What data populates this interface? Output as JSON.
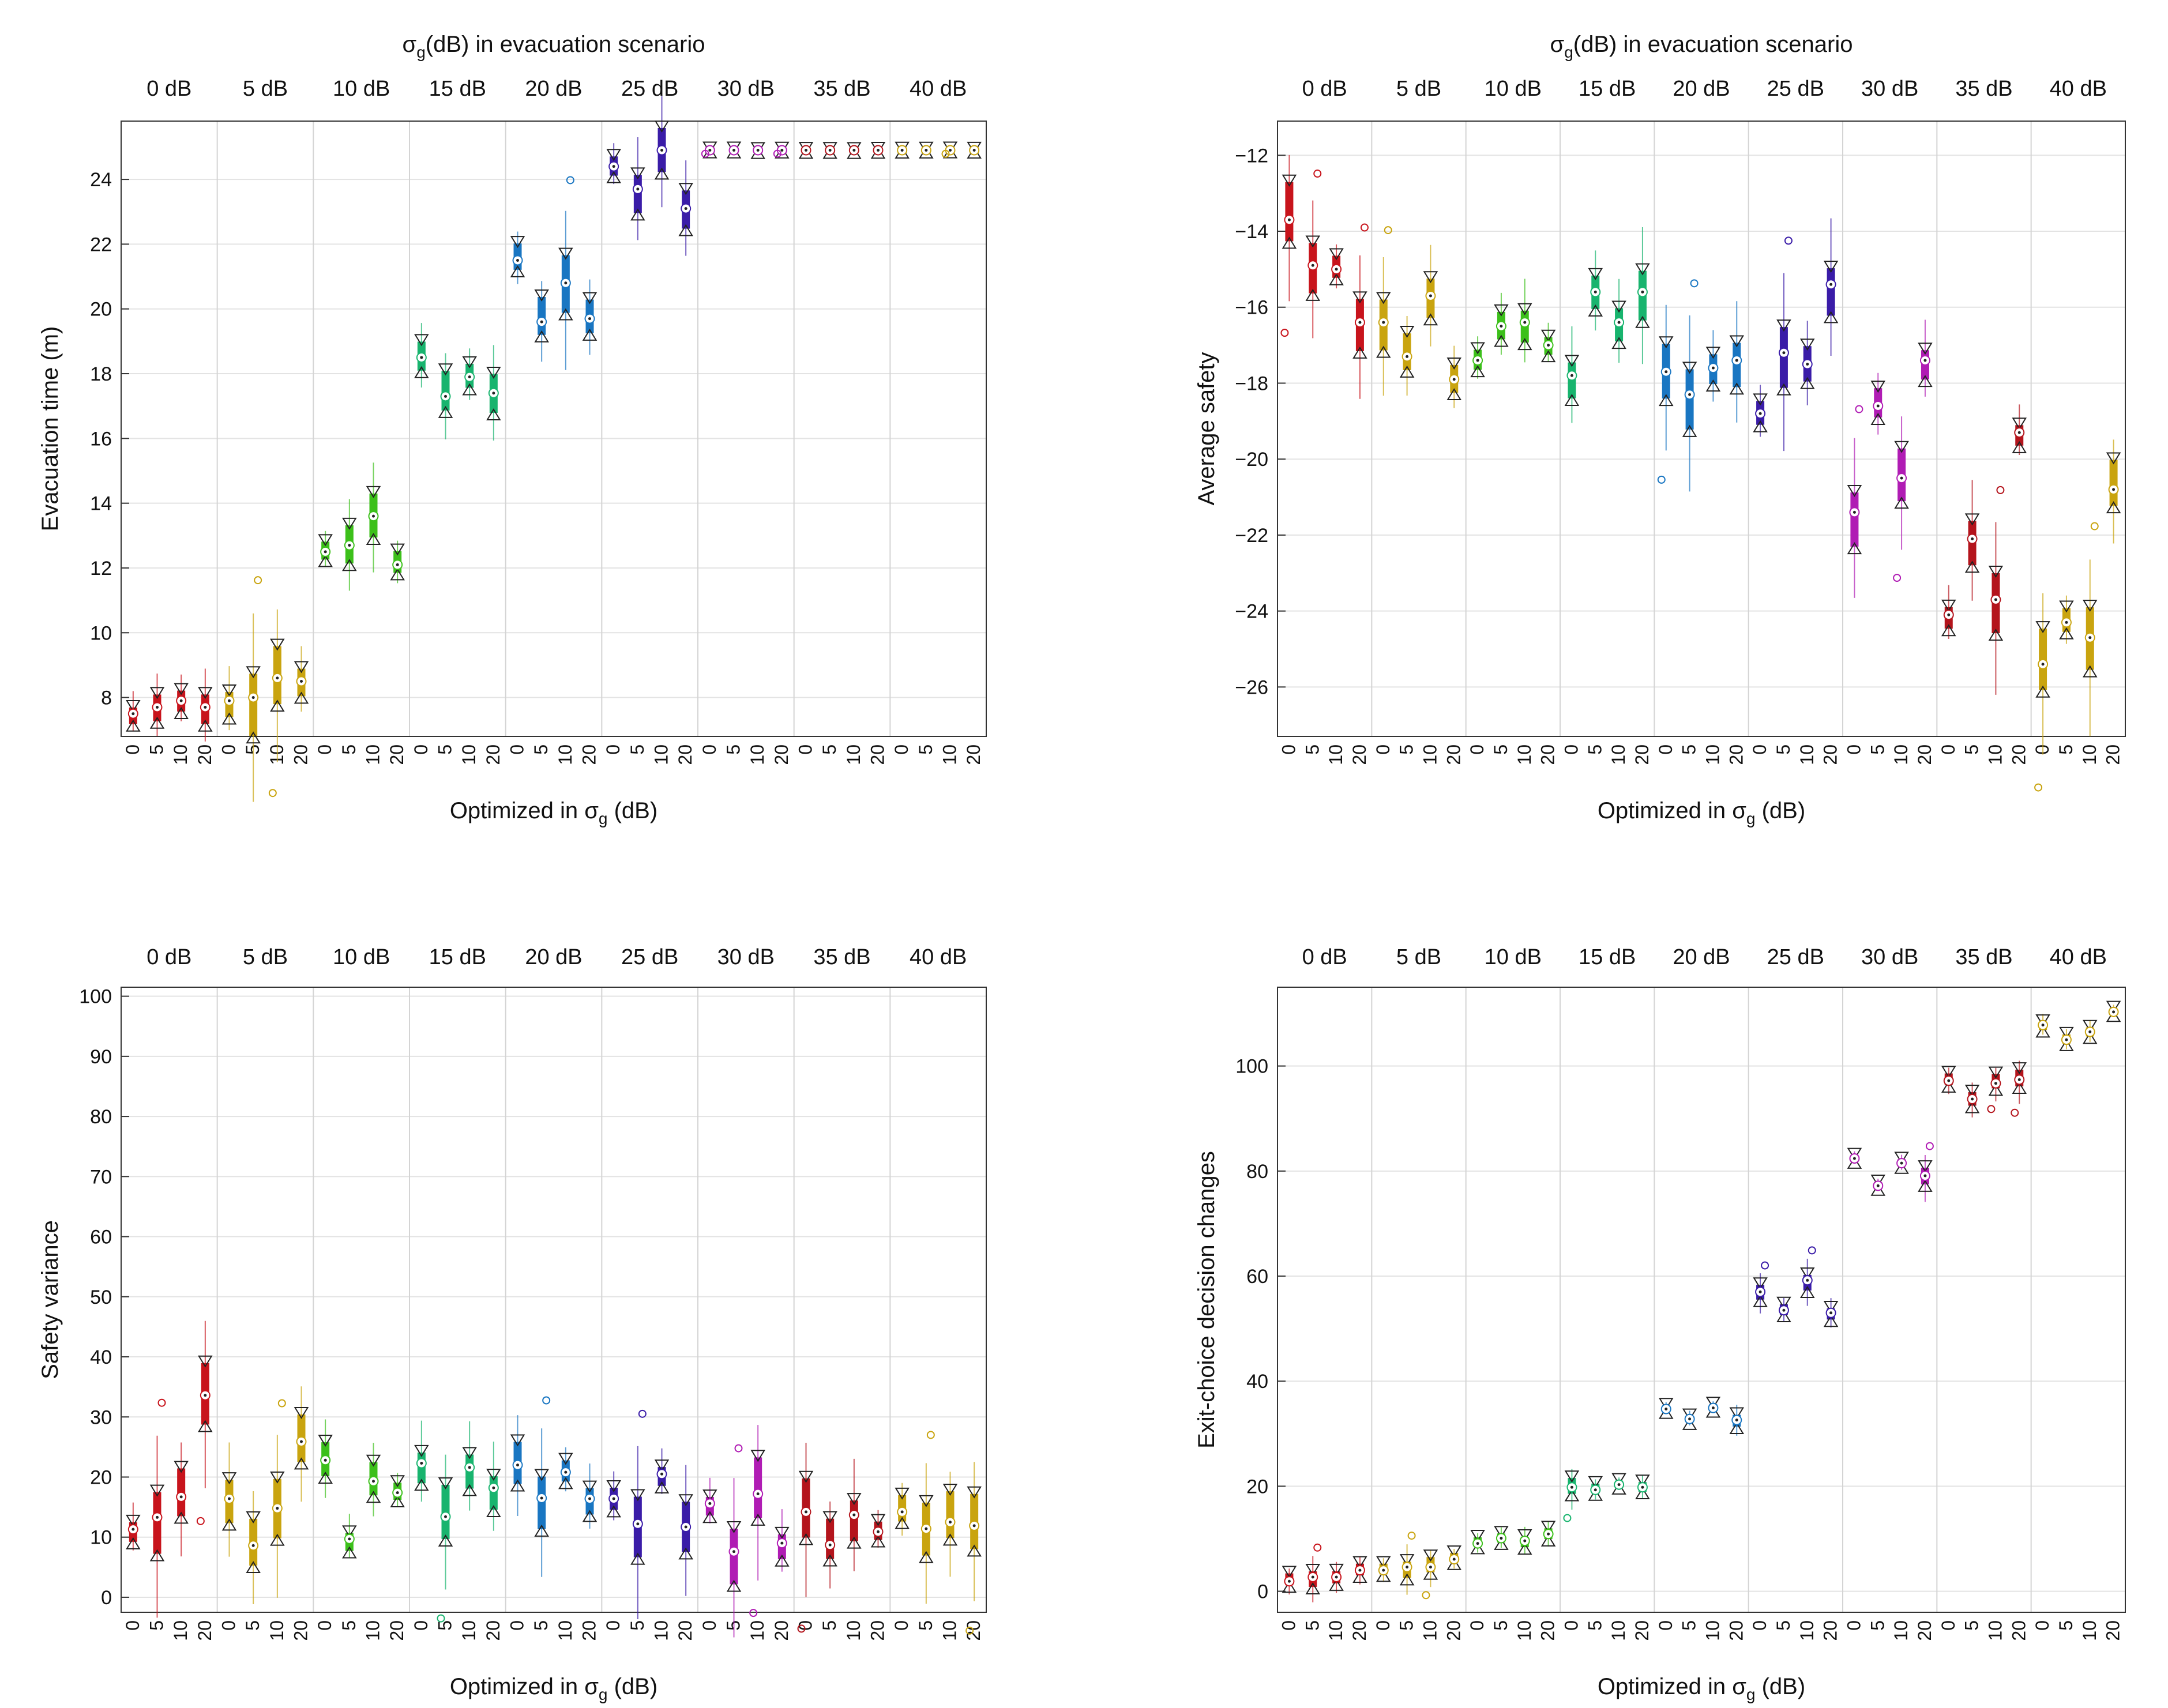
{
  "figure": {
    "top_title": "(dB) in evacuation scenario",
    "sigma_symbol": "σ",
    "sigma_sub": "g",
    "xlabel_prefix": "Optimized in ",
    "xlabel_suffix": " (dB)",
    "group_labels": [
      "0 dB",
      "5 dB",
      "10 dB",
      "15 dB",
      "20 dB",
      "25 dB",
      "30 dB",
      "35 dB",
      "40 dB"
    ],
    "sub_labels": [
      "0",
      "5",
      "10",
      "20"
    ],
    "group_colors": [
      "#c8141c",
      "#c9a40f",
      "#3cc01a",
      "#18b46e",
      "#1976c2",
      "#3a1ca8",
      "#b01cb4",
      "#b4141c",
      "#c9a40f"
    ]
  },
  "chart_data": [
    {
      "type": "boxplot",
      "panel": "top-left",
      "ylabel": "Evacuation time (m)",
      "has_top_title": true,
      "ylim": [
        6.8,
        25.8
      ],
      "yticks": [
        8,
        10,
        12,
        14,
        16,
        18,
        20,
        22,
        24
      ],
      "series": [
        {
          "group": "0 dB",
          "medians": [
            7.5,
            7.7,
            7.9,
            7.7
          ]
        },
        {
          "group": "5 dB",
          "medians": [
            7.9,
            8.0,
            8.6,
            8.5
          ]
        },
        {
          "group": "10 dB",
          "medians": [
            12.5,
            12.7,
            13.6,
            12.1
          ]
        },
        {
          "group": "15 dB",
          "medians": [
            18.5,
            17.3,
            17.9,
            17.4
          ]
        },
        {
          "group": "20 dB",
          "medians": [
            21.5,
            19.6,
            20.8,
            19.7
          ]
        },
        {
          "group": "25 dB",
          "medians": [
            24.4,
            23.7,
            24.9,
            23.1
          ]
        },
        {
          "group": "30 dB",
          "medians": [
            24.9,
            24.9,
            24.9,
            24.9
          ]
        },
        {
          "group": "35 dB",
          "medians": [
            24.9,
            24.9,
            24.9,
            24.9
          ]
        },
        {
          "group": "40 dB",
          "medians": [
            24.9,
            24.9,
            24.9,
            24.9
          ]
        }
      ]
    },
    {
      "type": "boxplot",
      "panel": "top-right",
      "ylabel": "Average safety",
      "has_top_title": true,
      "ylim": [
        -27.3,
        -11.1
      ],
      "yticks": [
        -12,
        -14,
        -16,
        -18,
        -20,
        -22,
        -24,
        -26
      ],
      "series": [
        {
          "group": "0 dB",
          "medians": [
            -13.7,
            -14.9,
            -15.0,
            -16.4
          ]
        },
        {
          "group": "5 dB",
          "medians": [
            -16.4,
            -17.3,
            -15.7,
            -17.9
          ]
        },
        {
          "group": "10 dB",
          "medians": [
            -17.4,
            -16.5,
            -16.4,
            -17.0
          ]
        },
        {
          "group": "15 dB",
          "medians": [
            -17.8,
            -15.6,
            -16.4,
            -15.6
          ]
        },
        {
          "group": "20 dB",
          "medians": [
            -17.7,
            -18.3,
            -17.6,
            -17.4
          ]
        },
        {
          "group": "25 dB",
          "medians": [
            -18.8,
            -17.2,
            -17.5,
            -15.4
          ]
        },
        {
          "group": "30 dB",
          "medians": [
            -21.4,
            -18.6,
            -20.5,
            -17.4
          ]
        },
        {
          "group": "35 dB",
          "medians": [
            -24.1,
            -22.1,
            -23.7,
            -19.3
          ]
        },
        {
          "group": "40 dB",
          "medians": [
            -25.4,
            -24.3,
            -24.7,
            -20.8
          ]
        }
      ]
    },
    {
      "type": "boxplot",
      "panel": "bottom-left",
      "ylabel": "Safety variance",
      "has_top_title": false,
      "ylim": [
        -2.5,
        101.5
      ],
      "yticks": [
        0,
        10,
        20,
        30,
        40,
        50,
        60,
        70,
        80,
        90,
        100
      ],
      "series": [
        {
          "group": "0 dB",
          "medians": [
            11.3,
            13.3,
            16.7,
            33.6
          ]
        },
        {
          "group": "5 dB",
          "medians": [
            16.4,
            8.6,
            14.8,
            25.9
          ]
        },
        {
          "group": "10 dB",
          "medians": [
            22.8,
            9.7,
            19.3,
            17.4
          ]
        },
        {
          "group": "15 dB",
          "medians": [
            22.3,
            13.4,
            21.6,
            18.2
          ]
        },
        {
          "group": "20 dB",
          "medians": [
            22.0,
            16.5,
            20.8,
            16.4
          ]
        },
        {
          "group": "25 dB",
          "medians": [
            16.4,
            12.2,
            20.5,
            11.7
          ]
        },
        {
          "group": "30 dB",
          "medians": [
            15.6,
            7.6,
            17.2,
            9.0
          ]
        },
        {
          "group": "35 dB",
          "medians": [
            14.2,
            8.7,
            13.7,
            10.9
          ]
        },
        {
          "group": "40 dB",
          "medians": [
            14.2,
            11.4,
            12.5,
            11.9
          ]
        }
      ]
    },
    {
      "type": "boxplot",
      "panel": "bottom-right",
      "ylabel": "Exit-choice decision changes",
      "has_top_title": false,
      "ylim": [
        -4,
        115
      ],
      "yticks": [
        0,
        20,
        40,
        60,
        80,
        100
      ],
      "series": [
        {
          "group": "0 dB",
          "medians": [
            1.9,
            2.7,
            2.7,
            4.0
          ]
        },
        {
          "group": "5 dB",
          "medians": [
            4.0,
            4.6,
            4.6,
            6.1
          ]
        },
        {
          "group": "10 dB",
          "medians": [
            9.1,
            10.1,
            9.6,
            10.9
          ]
        },
        {
          "group": "15 dB",
          "medians": [
            19.8,
            19.3,
            20.3,
            19.8
          ]
        },
        {
          "group": "20 dB",
          "medians": [
            34.7,
            32.8,
            34.9,
            32.6
          ]
        },
        {
          "group": "25 dB",
          "medians": [
            57.0,
            53.5,
            59.2,
            53.0
          ]
        },
        {
          "group": "30 dB",
          "medians": [
            82.4,
            77.2,
            81.5,
            79.1
          ]
        },
        {
          "group": "35 dB",
          "medians": [
            97.2,
            93.7,
            96.7,
            97.4
          ]
        },
        {
          "group": "40 dB",
          "medians": [
            107.8,
            105.0,
            106.5,
            110.3
          ]
        }
      ]
    }
  ]
}
